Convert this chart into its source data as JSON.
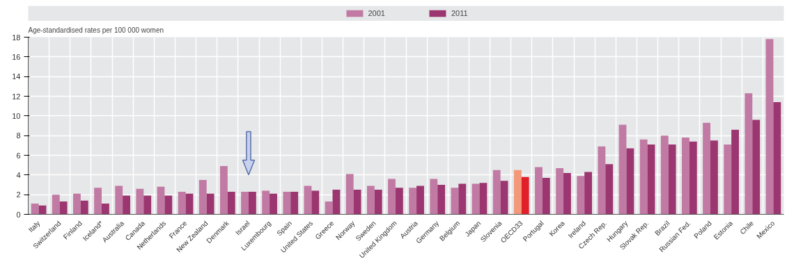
{
  "chart_data": {
    "type": "bar",
    "ylabel": "Age-standardised rates per 100 000 women",
    "categories": [
      "Italy",
      "Switzerland",
      "Finland",
      "Iceland*",
      "Australia",
      "Canada",
      "Netherlands",
      "France",
      "New Zealand",
      "Denmark",
      "Israel",
      "Luxembourg",
      "Spain",
      "United States",
      "Greece",
      "Norway",
      "Sweden",
      "United Kingdom",
      "Austria",
      "Germany",
      "Belgium",
      "Japan",
      "Slovenia",
      "OECD33",
      "Portugal",
      "Korea",
      "Ireland",
      "Czech Rep.",
      "Hungary",
      "Slovak Rep.",
      "Brazil",
      "Russian Fed.",
      "Poland",
      "Estonia",
      "Chile",
      "Mexico"
    ],
    "series": [
      {
        "name": "2001",
        "color": "#c17aa3",
        "values": [
          1.1,
          2.0,
          2.1,
          2.7,
          2.9,
          2.6,
          2.8,
          2.3,
          3.5,
          4.9,
          2.3,
          2.4,
          2.3,
          2.9,
          1.3,
          4.1,
          2.9,
          3.6,
          2.7,
          3.6,
          2.7,
          3.1,
          4.5,
          4.5,
          4.8,
          4.7,
          3.9,
          6.9,
          9.1,
          7.6,
          8.0,
          7.8,
          9.3,
          7.1,
          12.3,
          17.8
        ],
        "colors": [
          "#c17aa3",
          "#c17aa3",
          "#c17aa3",
          "#c17aa3",
          "#c17aa3",
          "#c17aa3",
          "#c17aa3",
          "#c17aa3",
          "#c17aa3",
          "#c17aa3",
          "#c17aa3",
          "#c17aa3",
          "#c17aa3",
          "#c17aa3",
          "#c17aa3",
          "#c17aa3",
          "#c17aa3",
          "#c17aa3",
          "#c17aa3",
          "#c17aa3",
          "#c17aa3",
          "#c17aa3",
          "#c17aa3",
          "#f4987a",
          "#c17aa3",
          "#c17aa3",
          "#c17aa3",
          "#c17aa3",
          "#c17aa3",
          "#c17aa3",
          "#c17aa3",
          "#c17aa3",
          "#c17aa3",
          "#c17aa3",
          "#c17aa3",
          "#c17aa3"
        ]
      },
      {
        "name": "2011",
        "color": "#9b3670",
        "values": [
          0.9,
          1.3,
          1.4,
          1.1,
          1.9,
          1.9,
          1.9,
          2.1,
          2.1,
          2.3,
          2.3,
          2.1,
          2.3,
          2.4,
          2.5,
          2.5,
          2.5,
          2.7,
          2.9,
          3.0,
          3.1,
          3.2,
          3.4,
          3.8,
          3.7,
          4.2,
          4.3,
          5.1,
          6.7,
          7.1,
          7.1,
          7.4,
          7.5,
          8.6,
          9.6,
          11.4
        ],
        "colors": [
          "#9b3670",
          "#9b3670",
          "#9b3670",
          "#9b3670",
          "#9b3670",
          "#9b3670",
          "#9b3670",
          "#9b3670",
          "#9b3670",
          "#9b3670",
          "#9b3670",
          "#9b3670",
          "#9b3670",
          "#9b3670",
          "#9b3670",
          "#9b3670",
          "#9b3670",
          "#9b3670",
          "#9b3670",
          "#9b3670",
          "#9b3670",
          "#9b3670",
          "#9b3670",
          "#e2202a",
          "#9b3670",
          "#9b3670",
          "#9b3670",
          "#9b3670",
          "#9b3670",
          "#9b3670",
          "#9b3670",
          "#9b3670",
          "#9b3670",
          "#9b3670",
          "#9b3670",
          "#9b3670"
        ]
      }
    ],
    "ylim": [
      0,
      18
    ],
    "yticks": [
      0,
      2,
      4,
      6,
      8,
      10,
      12,
      14,
      16,
      18
    ],
    "grid": true,
    "legend": "top"
  }
}
